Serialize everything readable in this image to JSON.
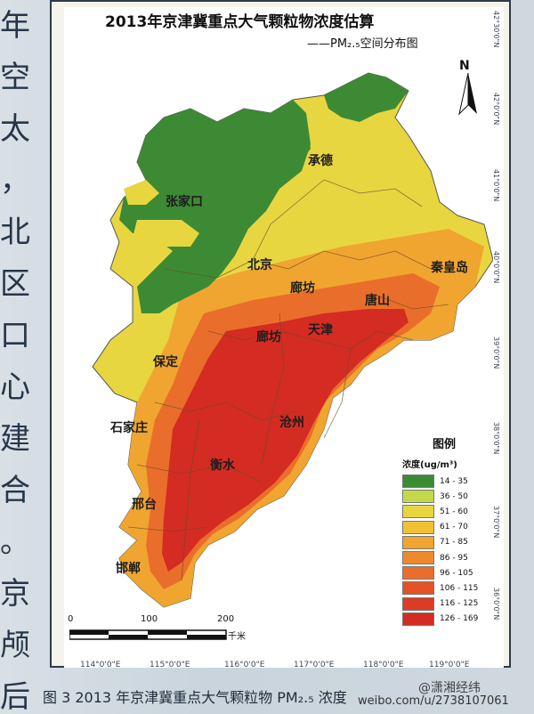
{
  "side_text": "年\n空\n太\n，\n北\n区\n口\n心\n建\n合\n。\n京\n颅\n后",
  "title": "2013年京津冀重点大气颗粒物浓度估算",
  "subtitle": "——PM₂.₅空间分布图",
  "north_arrow": "N",
  "cities": [
    {
      "name": "承德"
    },
    {
      "name": "张家口"
    },
    {
      "name": "北京"
    },
    {
      "name": "秦皇岛"
    },
    {
      "name": "廊坊"
    },
    {
      "name": "唐山"
    },
    {
      "name": "廊坊"
    },
    {
      "name": "天津"
    },
    {
      "name": "保定"
    },
    {
      "name": "沧州"
    },
    {
      "name": "石家庄"
    },
    {
      "name": "衡水"
    },
    {
      "name": "邢台"
    },
    {
      "name": "邯郸"
    }
  ],
  "longitude_labels": [
    "114°0'0\"E",
    "115°0'0\"E",
    "116°0'0\"E",
    "117°0'0\"E",
    "118°0'0\"E",
    "119°0'0\"E"
  ],
  "latitude_labels": [
    "42°30'0\"N",
    "42°0'0\"N",
    "41°0'0\"N",
    "40°0'0\"N",
    "39°0'0\"N",
    "38°0'0\"N",
    "37°0'0\"N",
    "36°0'0\"N"
  ],
  "legend": {
    "title": "图例",
    "unit": "浓度(ug/m³)",
    "items": [
      {
        "label": "14 - 35",
        "color": "#3d8a35"
      },
      {
        "label": "36 - 50",
        "color": "#c4d94a"
      },
      {
        "label": "51 - 60",
        "color": "#e8d640"
      },
      {
        "label": "61 - 70",
        "color": "#f0c233"
      },
      {
        "label": "71 - 85",
        "color": "#f0a530"
      },
      {
        "label": "86 - 95",
        "color": "#ee8a2e"
      },
      {
        "label": "96 - 105",
        "color": "#ea6e2b"
      },
      {
        "label": "106 - 115",
        "color": "#e45328"
      },
      {
        "label": "116 - 125",
        "color": "#dc3b25"
      },
      {
        "label": "126 - 169",
        "color": "#d42b22"
      }
    ]
  },
  "scale": {
    "ticks": [
      "0",
      "100",
      "200"
    ],
    "unit": "千米"
  },
  "caption": "图 3  2013 年京津冀重点大气颗粒物 PM₂.₅ 浓度",
  "watermark": "@潇湘经纬",
  "watermark_url": "weibo.com/u/2738107061"
}
